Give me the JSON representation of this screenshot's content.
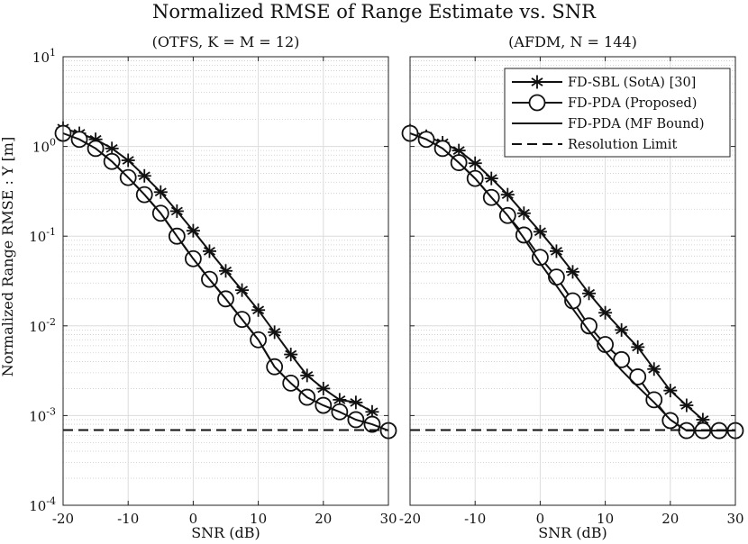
{
  "figure": {
    "title": "Normalized RMSE of Range Estimate vs. SNR",
    "ylabel": "Normalized Range RMSE : Υ [m]"
  },
  "chart_data": [
    {
      "type": "line",
      "subtitle": "(OTFS, K = M = 12)",
      "xlabel": "SNR (dB)",
      "ylabel": "Normalized Range RMSE : Υ [m]",
      "xlim": [
        -20,
        30
      ],
      "ylim": [
        0.0001,
        10
      ],
      "yscale": "log",
      "grid": true,
      "xticks": [
        "-20",
        "-10",
        "0",
        "10",
        "20",
        "30"
      ],
      "yticks": [
        {
          "base": "10",
          "exp": "1"
        },
        {
          "base": "10",
          "exp": "0"
        },
        {
          "base": "10",
          "exp": "-1"
        },
        {
          "base": "10",
          "exp": "-2"
        },
        {
          "base": "10",
          "exp": "-3"
        },
        {
          "base": "10",
          "exp": "-4"
        }
      ],
      "series": [
        {
          "name": "FD-SBL (SotA) [30]",
          "marker": "asterisk",
          "linestyle": "solid",
          "x": [
            -20,
            -17.5,
            -15,
            -12.5,
            -10,
            -7.5,
            -5,
            -2.5,
            0,
            2.5,
            5,
            7.5,
            10,
            12.5,
            15,
            17.5,
            20,
            22.5,
            25,
            27.5
          ],
          "y": [
            1.6,
            1.4,
            1.2,
            0.95,
            0.7,
            0.47,
            0.31,
            0.19,
            0.115,
            0.068,
            0.041,
            0.025,
            0.015,
            0.0085,
            0.0048,
            0.0028,
            0.002,
            0.0015,
            0.0014,
            0.0011
          ]
        },
        {
          "name": "FD-PDA (Proposed)",
          "marker": "circle",
          "linestyle": "solid",
          "x": [
            -20,
            -17.5,
            -15,
            -12.5,
            -10,
            -7.5,
            -5,
            -2.5,
            0,
            2.5,
            5,
            7.5,
            10,
            12.5,
            15,
            17.5,
            20,
            22.5,
            25,
            27.5,
            30
          ],
          "y": [
            1.4,
            1.2,
            0.95,
            0.68,
            0.45,
            0.29,
            0.18,
            0.1,
            0.056,
            0.033,
            0.02,
            0.0118,
            0.007,
            0.0035,
            0.0023,
            0.0016,
            0.0013,
            0.0011,
            0.0009,
            0.0008,
            0.00068
          ]
        },
        {
          "name": "FD-PDA (MF Bound)",
          "marker": "none",
          "linestyle": "solid",
          "x": [
            -20,
            -17.5,
            -15,
            -12.5,
            -10,
            -7.5,
            -5,
            -2.5,
            0,
            2.5,
            5,
            7.5,
            10,
            12.5,
            15,
            17.5,
            20,
            22.5,
            25,
            27.5,
            30
          ],
          "y": [
            1.4,
            1.2,
            0.95,
            0.68,
            0.45,
            0.29,
            0.18,
            0.1,
            0.056,
            0.033,
            0.02,
            0.0118,
            0.007,
            0.0035,
            0.0023,
            0.0016,
            0.0013,
            0.0011,
            0.0009,
            0.0008,
            0.00068
          ]
        },
        {
          "name": "Resolution Limit",
          "marker": "none",
          "linestyle": "dashed",
          "x": [
            -20,
            30
          ],
          "y": [
            0.00069,
            0.00069
          ]
        }
      ]
    },
    {
      "type": "line",
      "subtitle": "(AFDM, N = 144)",
      "xlabel": "SNR (dB)",
      "xlim": [
        -20,
        30
      ],
      "ylim": [
        0.0001,
        10
      ],
      "yscale": "log",
      "grid": true,
      "legend": "top-right",
      "xticks": [
        "-20",
        "-10",
        "0",
        "10",
        "20",
        "30"
      ],
      "series": [
        {
          "name": "FD-SBL (SotA) [30]",
          "marker": "asterisk",
          "linestyle": "solid",
          "x": [
            -20,
            -17.5,
            -15,
            -12.5,
            -10,
            -7.5,
            -5,
            -2.5,
            0,
            2.5,
            5,
            7.5,
            10,
            12.5,
            15,
            17.5,
            20,
            22.5,
            25
          ],
          "y": [
            1.5,
            1.3,
            1.1,
            0.9,
            0.65,
            0.44,
            0.29,
            0.18,
            0.112,
            0.068,
            0.04,
            0.023,
            0.014,
            0.009,
            0.0058,
            0.0033,
            0.0019,
            0.0013,
            0.0009
          ]
        },
        {
          "name": "FD-PDA (Proposed)",
          "marker": "circle",
          "linestyle": "solid",
          "x": [
            -20,
            -17.5,
            -15,
            -12.5,
            -10,
            -7.5,
            -5,
            -2.5,
            0,
            2.5,
            5,
            7.5,
            10,
            12.5,
            15,
            17.5,
            20,
            22.5,
            25,
            27.5,
            30
          ],
          "y": [
            1.4,
            1.2,
            0.95,
            0.66,
            0.44,
            0.27,
            0.17,
            0.103,
            0.058,
            0.035,
            0.019,
            0.01,
            0.0062,
            0.0042,
            0.0027,
            0.0015,
            0.00088,
            0.00068,
            0.00068,
            0.00068,
            0.00068
          ]
        },
        {
          "name": "FD-PDA (MF Bound)",
          "marker": "none",
          "linestyle": "solid",
          "x": [
            -20,
            -17.5,
            -15,
            -12.5,
            -10,
            -7.5,
            -5,
            -2.5,
            0,
            2.5,
            5,
            7.5,
            10,
            12.5,
            15,
            17.5,
            20,
            22.5,
            25,
            27.5,
            30
          ],
          "y": [
            1.4,
            1.2,
            0.95,
            0.66,
            0.44,
            0.27,
            0.17,
            0.095,
            0.05,
            0.028,
            0.0155,
            0.0088,
            0.0052,
            0.0032,
            0.0021,
            0.0014,
            0.0009,
            0.00068,
            0.00068,
            0.00068,
            0.00068
          ]
        },
        {
          "name": "Resolution Limit",
          "marker": "none",
          "linestyle": "dashed",
          "x": [
            -20,
            30
          ],
          "y": [
            0.00069,
            0.00069
          ]
        }
      ]
    }
  ]
}
